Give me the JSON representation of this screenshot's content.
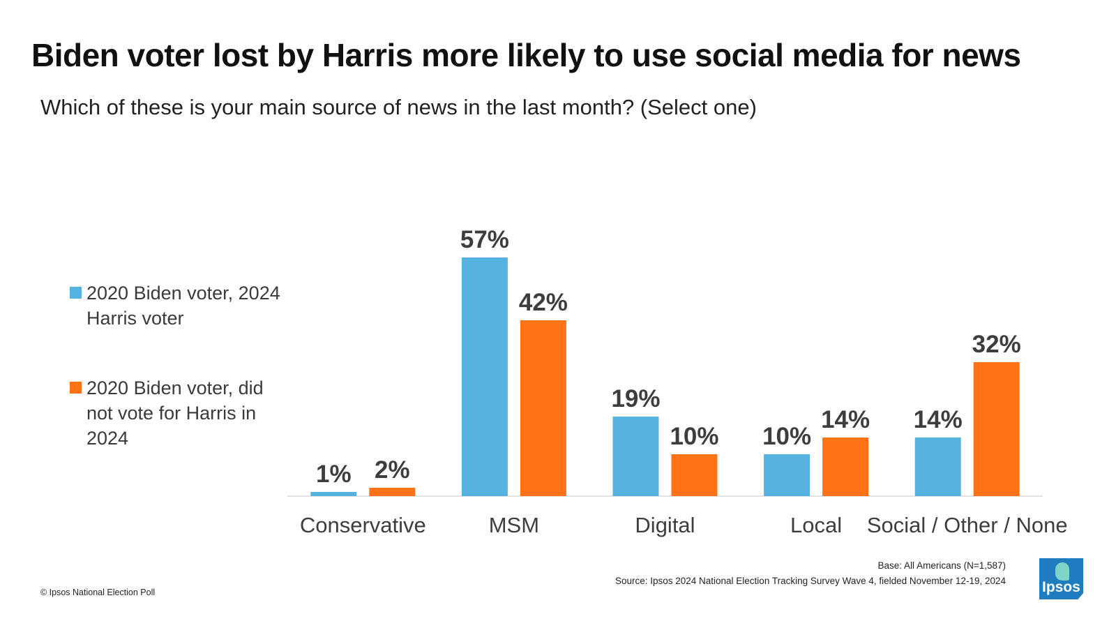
{
  "title": "Biden voter lost by Harris more likely to use social media for news",
  "subtitle": "Which of these is your main source of news in the last month?  (Select one)",
  "legend": [
    {
      "label": "2020 Biden voter, 2024 Harris voter",
      "color": "#56b2df"
    },
    {
      "label": "2020 Biden voter, did not vote for Harris in 2024",
      "color": "#ff7316"
    }
  ],
  "chart_data": {
    "type": "bar",
    "categories": [
      "Conservative",
      "MSM",
      "Digital",
      "Local",
      "Social / Other / None"
    ],
    "series": [
      {
        "name": "2020 Biden voter, 2024 Harris voter",
        "values": [
          1,
          57,
          19,
          10,
          14
        ],
        "labels": [
          "1%",
          "57%",
          "19%",
          "10%",
          "14%"
        ],
        "color": "#56b2df"
      },
      {
        "name": "2020 Biden voter, did not vote for Harris in 2024",
        "values": [
          2,
          42,
          10,
          14,
          32
        ],
        "labels": [
          "2%",
          "42%",
          "10%",
          "14%",
          "32%"
        ],
        "color": "#ff7316"
      }
    ],
    "ylim": [
      0,
      60
    ],
    "grid": false,
    "legend_position": "left"
  },
  "footer": {
    "copyright": "© Ipsos National Election Poll",
    "base": "Base: All Americans (N=1,587)",
    "source": "Source: Ipsos 2024 National Election Tracking Survey Wave 4, fielded November 12-19, 2024"
  },
  "logo": {
    "text": "Ipsos"
  }
}
